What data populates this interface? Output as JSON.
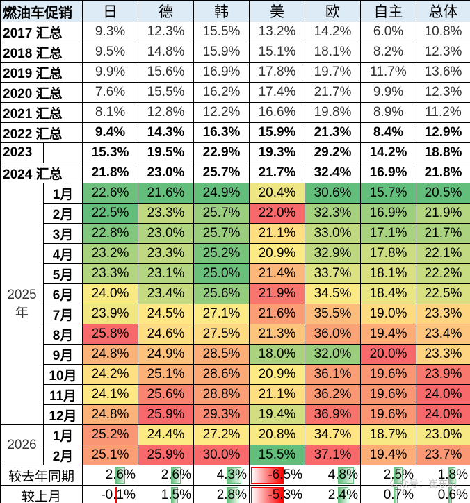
{
  "header": {
    "corner": "燃油车促销",
    "columns": [
      "日",
      "德",
      "韩",
      "美",
      "欧",
      "自主",
      "总体"
    ]
  },
  "annual_rows": [
    {
      "label": "2017 汇总",
      "style": "thin",
      "values": [
        "9.3%",
        "12.3%",
        "15.5%",
        "13.2%",
        "14.2%",
        "6.0%",
        "10.8%"
      ]
    },
    {
      "label": "2018 汇总",
      "style": "thin",
      "values": [
        "9.5%",
        "14.8%",
        "15.9%",
        "15.1%",
        "18.1%",
        "8.2%",
        "12.3%"
      ]
    },
    {
      "label": "2019 汇总",
      "style": "thin",
      "values": [
        "9.9%",
        "15.6%",
        "16.9%",
        "17.8%",
        "19.7%",
        "11.7%",
        "13.6%"
      ]
    },
    {
      "label": "2020 汇总",
      "style": "thin",
      "values": [
        "7.6%",
        "15.5%",
        "16.2%",
        "17.4%",
        "21.7%",
        "9.9%",
        "12.3%"
      ]
    },
    {
      "label": "2021 汇总",
      "style": "thin",
      "values": [
        "8.1%",
        "12.8%",
        "12.2%",
        "16.6%",
        "19.8%",
        "8.9%",
        "11.2%"
      ]
    },
    {
      "label": "2022 汇总",
      "style": "bold",
      "values": [
        "9.4%",
        "14.3%",
        "16.3%",
        "15.9%",
        "21.3%",
        "8.4%",
        "12.9%"
      ]
    },
    {
      "label": "2023",
      "style": "bold",
      "values": [
        "15.3%",
        "19.5%",
        "22.9%",
        "19.3%",
        "29.2%",
        "14.2%",
        "18.8%"
      ]
    },
    {
      "label": "2024 汇总",
      "style": "bold",
      "values": [
        "21.8%",
        "23.0%",
        "25.7%",
        "21.7%",
        "32.4%",
        "16.9%",
        "21.8%"
      ]
    }
  ],
  "monthly_groups": [
    {
      "year": "2025\n年",
      "rows": [
        {
          "month": "1月",
          "values": [
            22.6,
            21.6,
            24.9,
            20.4,
            30.6,
            15.7,
            20.5
          ]
        },
        {
          "month": "2月",
          "values": [
            22.5,
            23.3,
            25.7,
            22.0,
            32.3,
            16.9,
            21.9
          ]
        },
        {
          "month": "3月",
          "values": [
            22.8,
            23.0,
            25.7,
            21.1,
            33.0,
            17.1,
            21.7
          ]
        },
        {
          "month": "4月",
          "values": [
            23.2,
            23.3,
            25.2,
            20.9,
            32.9,
            17.8,
            22.1
          ]
        },
        {
          "month": "5月",
          "values": [
            23.3,
            23.1,
            25.0,
            21.4,
            33.7,
            18.1,
            22.2
          ]
        },
        {
          "month": "6月",
          "values": [
            24.0,
            23.4,
            25.6,
            21.9,
            34.5,
            18.4,
            22.5
          ]
        },
        {
          "month": "7月",
          "values": [
            23.9,
            24.5,
            27.1,
            21.6,
            35.5,
            19.0,
            23.3
          ]
        },
        {
          "month": "8月",
          "values": [
            25.8,
            24.6,
            27.5,
            21.3,
            36.0,
            19.4,
            23.4
          ]
        },
        {
          "month": "9月",
          "values": [
            24.8,
            24.9,
            28.5,
            18.0,
            32.0,
            20.0,
            23.3
          ]
        },
        {
          "month": "10月",
          "values": [
            24.2,
            25.1,
            28.6,
            20.9,
            36.1,
            19.6,
            23.9
          ]
        },
        {
          "month": "11月",
          "values": [
            24.1,
            25.6,
            28.8,
            21.1,
            36.2,
            19.6,
            24.0
          ]
        },
        {
          "month": "12月",
          "values": [
            24.8,
            25.9,
            29.3,
            19.4,
            36.9,
            19.6,
            24.0
          ]
        }
      ]
    },
    {
      "year": "2026",
      "rows": [
        {
          "month": "1月",
          "values": [
            25.2,
            24.4,
            27.2,
            20.8,
            34.7,
            18.7,
            23.0
          ]
        },
        {
          "month": "2月",
          "values": [
            25.1,
            25.9,
            30.0,
            15.5,
            37.1,
            19.4,
            23.7
          ]
        }
      ]
    }
  ],
  "comparison_rows": [
    {
      "label": "较去年同期",
      "values": [
        2.6,
        2.6,
        4.3,
        -6.5,
        4.8,
        2.5,
        1.8
      ]
    },
    {
      "label": "较上月",
      "values": [
        -0.1,
        1.5,
        2.8,
        -5.3,
        2.4,
        0.7,
        0.6
      ]
    }
  ],
  "colors": {
    "header_bg": "#DDEBF7",
    "scale_low": "#63BE7B",
    "scale_mid": "#FFEB84",
    "scale_high": "#F8696B",
    "bar_pos": "#63BE7B",
    "bar_neg": "#FF0000"
  },
  "watermark": "公众号：崔东树"
}
